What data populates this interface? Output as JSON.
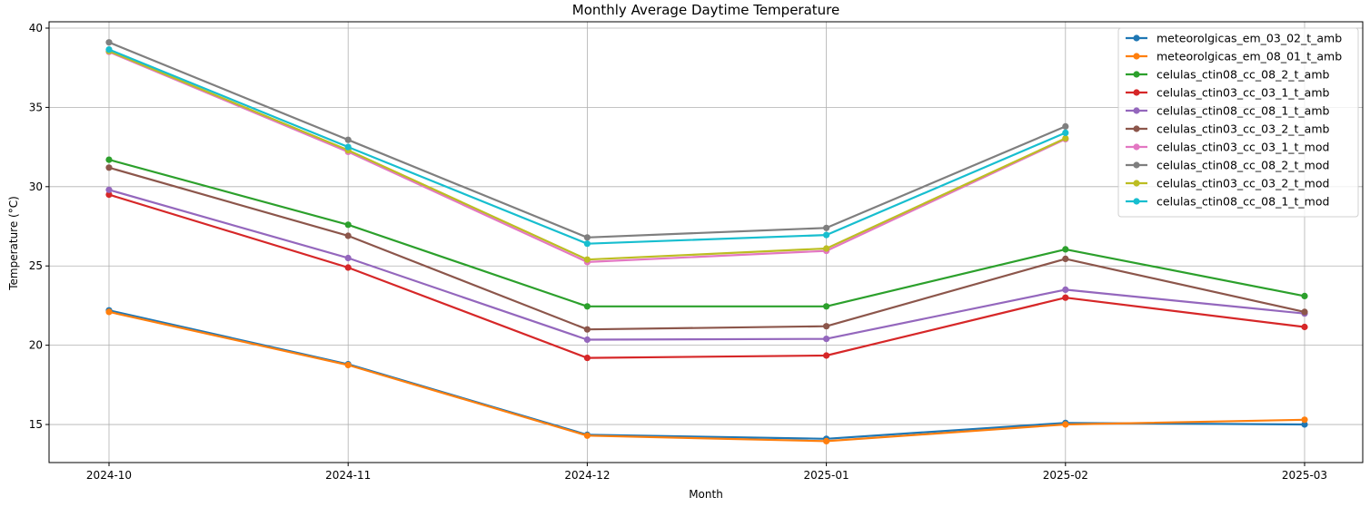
{
  "chart_data": {
    "type": "line",
    "title": "Monthly Average Daytime Temperature",
    "xlabel": "Month",
    "ylabel": "Temperature (°C)",
    "categories": [
      "2024-10",
      "2024-11",
      "2024-12",
      "2025-01",
      "2025-02",
      "2025-03"
    ],
    "ylim": [
      12.6,
      40.4
    ],
    "yticks": [
      15,
      20,
      25,
      30,
      35,
      40
    ],
    "grid": true,
    "legend_position": "top-right",
    "series": [
      {
        "name": "meteorolgicas_em_03_02_t_amb",
        "color": "#1f77b4",
        "values": [
          22.2,
          18.8,
          14.35,
          14.1,
          15.1,
          15.0
        ]
      },
      {
        "name": "meteorolgicas_em_08_01_t_amb",
        "color": "#ff7f0e",
        "values": [
          22.1,
          18.75,
          14.3,
          13.95,
          15.0,
          15.3
        ]
      },
      {
        "name": "celulas_ctin08_cc_08_2_t_amb",
        "color": "#2ca02c",
        "values": [
          31.7,
          27.6,
          22.45,
          22.45,
          26.05,
          23.1
        ]
      },
      {
        "name": "celulas_ctin03_cc_03_1_t_amb",
        "color": "#d62728",
        "values": [
          29.5,
          24.9,
          19.2,
          19.35,
          23.0,
          21.15
        ]
      },
      {
        "name": "celulas_ctin08_cc_08_1_t_amb",
        "color": "#9467bd",
        "values": [
          29.8,
          25.5,
          20.35,
          20.4,
          23.5,
          22.0
        ]
      },
      {
        "name": "celulas_ctin03_cc_03_2_t_amb",
        "color": "#8c564b",
        "values": [
          31.2,
          26.9,
          21.0,
          21.2,
          25.45,
          22.1
        ]
      },
      {
        "name": "celulas_ctin03_cc_03_1_t_mod",
        "color": "#e377c2",
        "values": [
          38.5,
          32.2,
          25.25,
          25.95,
          33.0,
          null
        ]
      },
      {
        "name": "celulas_ctin08_cc_08_2_t_mod",
        "color": "#7f7f7f",
        "values": [
          39.1,
          32.95,
          26.8,
          27.4,
          33.8,
          null
        ]
      },
      {
        "name": "celulas_ctin03_cc_03_2_t_mod",
        "color": "#bcbd22",
        "values": [
          38.55,
          32.3,
          25.4,
          26.1,
          33.05,
          null
        ]
      },
      {
        "name": "celulas_ctin08_cc_08_1_t_mod",
        "color": "#17becf",
        "values": [
          38.65,
          32.5,
          26.4,
          26.95,
          33.4,
          null
        ]
      }
    ]
  }
}
